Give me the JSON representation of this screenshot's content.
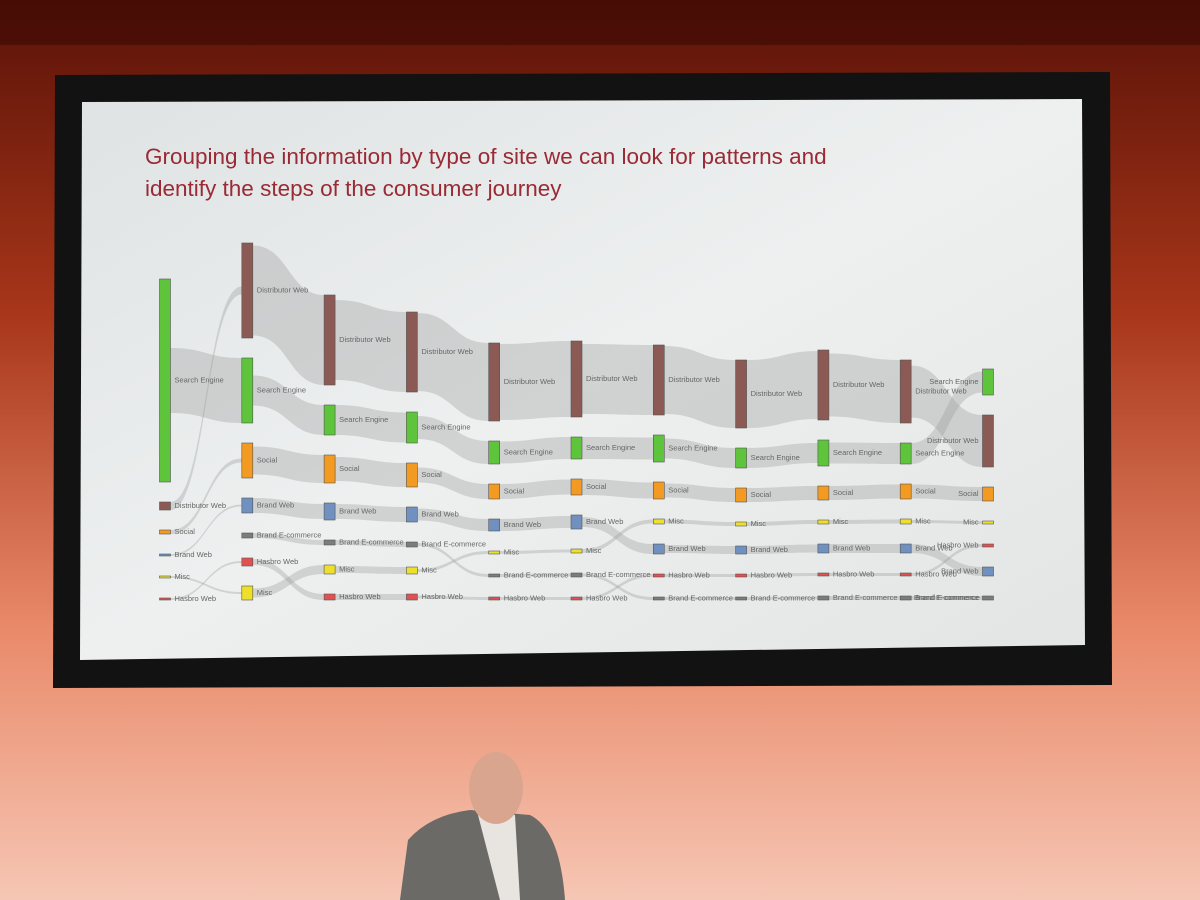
{
  "slide": {
    "title_lines": [
      "Grouping the information by type of site we can look for patterns and",
      "identify the steps of the consumer journey"
    ],
    "colors": {
      "Search Engine": "#5ec43c",
      "Distributor Web": "#8c5a54",
      "Social": "#f29a22",
      "Brand Web": "#7090c0",
      "Brand E-commerce": "#7c7c7c",
      "Hasbro Web": "#e05252",
      "Misc": "#eee02a"
    },
    "columns": [
      {
        "nodes": [
          {
            "label": "Search Engine",
            "value": 203
          },
          {
            "label": "Distributor Web",
            "value": 8
          },
          {
            "label": "Social",
            "value": 4
          },
          {
            "label": "Brand Web",
            "value": 2
          },
          {
            "label": "Misc",
            "value": 2
          },
          {
            "label": "Hasbro Web",
            "value": 2
          }
        ]
      },
      {
        "nodes": [
          {
            "label": "Distributor Web",
            "value": 95
          },
          {
            "label": "Search Engine",
            "value": 65
          },
          {
            "label": "Social",
            "value": 35
          },
          {
            "label": "Brand Web",
            "value": 15
          },
          {
            "label": "Brand E-commerce",
            "value": 5
          },
          {
            "label": "Hasbro Web",
            "value": 8
          },
          {
            "label": "Misc",
            "value": 14
          }
        ]
      },
      {
        "nodes": [
          {
            "label": "Distributor Web",
            "value": 90
          },
          {
            "label": "Search Engine",
            "value": 30
          },
          {
            "label": "Social",
            "value": 28
          },
          {
            "label": "Brand Web",
            "value": 17
          },
          {
            "label": "Brand E-commerce",
            "value": 5
          },
          {
            "label": "Misc",
            "value": 9
          },
          {
            "label": "Hasbro Web",
            "value": 6
          }
        ]
      },
      {
        "nodes": [
          {
            "label": "Distributor Web",
            "value": 80
          },
          {
            "label": "Search Engine",
            "value": 31
          },
          {
            "label": "Social",
            "value": 24
          },
          {
            "label": "Brand Web",
            "value": 15
          },
          {
            "label": "Brand E-commerce",
            "value": 5
          },
          {
            "label": "Misc",
            "value": 7
          },
          {
            "label": "Hasbro Web",
            "value": 6
          }
        ]
      },
      {
        "nodes": [
          {
            "label": "Distributor Web",
            "value": 78
          },
          {
            "label": "Search Engine",
            "value": 23
          },
          {
            "label": "Social",
            "value": 15
          },
          {
            "label": "Brand Web",
            "value": 12
          },
          {
            "label": "Misc",
            "value": 3
          },
          {
            "label": "Brand E-commerce",
            "value": 3
          },
          {
            "label": "Hasbro Web",
            "value": 3
          }
        ]
      },
      {
        "nodes": [
          {
            "label": "Distributor Web",
            "value": 76
          },
          {
            "label": "Search Engine",
            "value": 22
          },
          {
            "label": "Social",
            "value": 16
          },
          {
            "label": "Brand Web",
            "value": 14
          },
          {
            "label": "Misc",
            "value": 4
          },
          {
            "label": "Brand E-commerce",
            "value": 4
          },
          {
            "label": "Hasbro Web",
            "value": 3
          }
        ]
      },
      {
        "nodes": [
          {
            "label": "Distributor Web",
            "value": 70
          },
          {
            "label": "Search Engine",
            "value": 27
          },
          {
            "label": "Social",
            "value": 17
          },
          {
            "label": "Misc",
            "value": 5
          },
          {
            "label": "Brand Web",
            "value": 10
          },
          {
            "label": "Hasbro Web",
            "value": 3
          },
          {
            "label": "Brand E-commerce",
            "value": 3
          }
        ]
      },
      {
        "nodes": [
          {
            "label": "Distributor Web",
            "value": 68
          },
          {
            "label": "Search Engine",
            "value": 20
          },
          {
            "label": "Social",
            "value": 14
          },
          {
            "label": "Misc",
            "value": 4
          },
          {
            "label": "Brand Web",
            "value": 8
          },
          {
            "label": "Hasbro Web",
            "value": 3
          },
          {
            "label": "Brand E-commerce",
            "value": 3
          }
        ]
      },
      {
        "nodes": [
          {
            "label": "Distributor Web",
            "value": 70
          },
          {
            "label": "Search Engine",
            "value": 26
          },
          {
            "label": "Social",
            "value": 14
          },
          {
            "label": "Misc",
            "value": 4
          },
          {
            "label": "Brand Web",
            "value": 9
          },
          {
            "label": "Hasbro Web",
            "value": 3
          },
          {
            "label": "Brand E-commerce",
            "value": 4
          }
        ]
      },
      {
        "nodes": [
          {
            "label": "Distributor Web",
            "value": 63
          },
          {
            "label": "Search Engine",
            "value": 21
          },
          {
            "label": "Social",
            "value": 15
          },
          {
            "label": "Misc",
            "value": 5
          },
          {
            "label": "Brand Web",
            "value": 9
          },
          {
            "label": "Hasbro Web",
            "value": 3
          },
          {
            "label": "Brand E-commerce",
            "value": 4
          }
        ]
      },
      {
        "nodes": [
          {
            "label": "Search Engine",
            "value": 26
          },
          {
            "label": "Distributor Web",
            "value": 52
          },
          {
            "label": "Social",
            "value": 14
          },
          {
            "label": "Misc",
            "value": 3
          },
          {
            "label": "Hasbro Web",
            "value": 3
          },
          {
            "label": "Brand Web",
            "value": 9
          },
          {
            "label": "Brand E-commerce",
            "value": 4
          }
        ]
      }
    ]
  }
}
